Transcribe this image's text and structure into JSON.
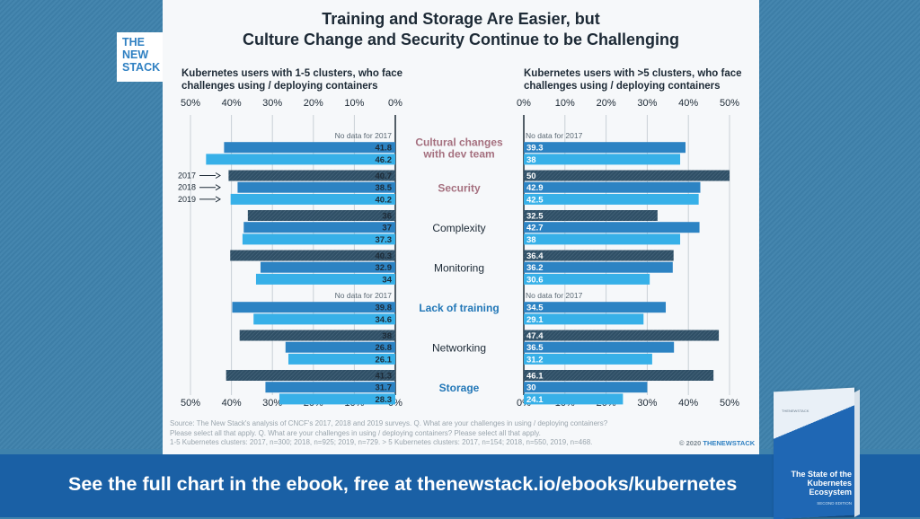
{
  "title_line1": "Training and Storage Are Easier, but",
  "title_line2": "Culture Change and Security Continue to be Challenging",
  "logo": [
    "THE",
    "NEW",
    "STACK"
  ],
  "left_subtitle_line1": "Kubernetes users with 1-5 clusters, who face",
  "left_subtitle_line2": "challenges using / deploying containers",
  "right_subtitle_line1": "Kubernetes users with >5 clusters, who face",
  "right_subtitle_line2": "challenges using / deploying containers",
  "no_data_label": "No data for 2017",
  "source_line1": "Source: The New Stack's analysis of CNCF's 2017, 2018 and 2019 surveys. Q. What are your challenges in using / deploying containers?",
  "source_line2": "Please select all that apply. Q. What are your challenges in using / deploying containers? Please select all that apply.",
  "source_line3": "1-5 Kubernetes clusters: 2017, n=300; 2018, n=925; 2019, n=729. > 5 Kubernetes clusters: 2017, n=154; 2018, n=550, 2019, n=468.",
  "copyright": "© 2020",
  "copyright_brand": "THENEWSTACK",
  "footer": "See the full chart in the ebook, free at thenewstack.io/ebooks/kubernetes",
  "book_title": "The State of the Kubernetes Ecosystem",
  "book_subtitle": "SECOND EDITION",
  "book_tag": "THENEWSTACK",
  "colors": {
    "y2017": "#2f4f66",
    "y2018": "#2c83c3",
    "y2019": "#37b0e8",
    "highlight_label_pink": "#a5707f",
    "highlight_label_blue": "#2277b7",
    "label_dark": "#1d2a36"
  },
  "chart_data": {
    "type": "bar",
    "orientation": "horizontal",
    "layout": "butterfly",
    "categories": [
      "Cultural changes with dev team",
      "Security",
      "Complexity",
      "Monitoring",
      "Lack of training",
      "Networking",
      "Storage"
    ],
    "category_display": [
      [
        "Cultural changes",
        "with dev team"
      ],
      [
        "Security"
      ],
      [
        "Complexity"
      ],
      [
        "Monitoring"
      ],
      [
        "Lack of training"
      ],
      [
        "Networking"
      ],
      [
        "Storage"
      ]
    ],
    "category_style": [
      "pink",
      "pink",
      "dark",
      "dark",
      "blue",
      "dark",
      "blue"
    ],
    "year_legend": [
      "2017",
      "2018",
      "2019"
    ],
    "ticks": [
      "50%",
      "40%",
      "30%",
      "20%",
      "10%",
      "0%"
    ],
    "ticks_right": [
      "0%",
      "10%",
      "20%",
      "30%",
      "40%",
      "50%"
    ],
    "xlim": [
      0,
      50
    ],
    "left": {
      "subtitle": "Kubernetes users with 1-5 clusters, who face challenges using / deploying containers",
      "series": [
        {
          "name": "2017",
          "values": [
            null,
            40.7,
            36,
            40.3,
            null,
            38,
            41.3
          ]
        },
        {
          "name": "2018",
          "values": [
            41.8,
            38.5,
            37,
            32.9,
            39.8,
            26.8,
            31.7
          ]
        },
        {
          "name": "2019",
          "values": [
            46.2,
            40.2,
            37.3,
            34,
            34.6,
            26.1,
            28.3
          ]
        }
      ]
    },
    "right": {
      "subtitle": "Kubernetes users with >5 clusters, who face challenges using / deploying containers",
      "series": [
        {
          "name": "2017",
          "values": [
            null,
            50,
            32.5,
            36.4,
            null,
            47.4,
            46.1
          ]
        },
        {
          "name": "2018",
          "values": [
            39.3,
            42.9,
            42.7,
            36.2,
            34.5,
            36.5,
            30
          ]
        },
        {
          "name": "2019",
          "values": [
            38,
            42.5,
            38,
            30.6,
            29.1,
            31.2,
            24.1
          ]
        }
      ]
    }
  }
}
